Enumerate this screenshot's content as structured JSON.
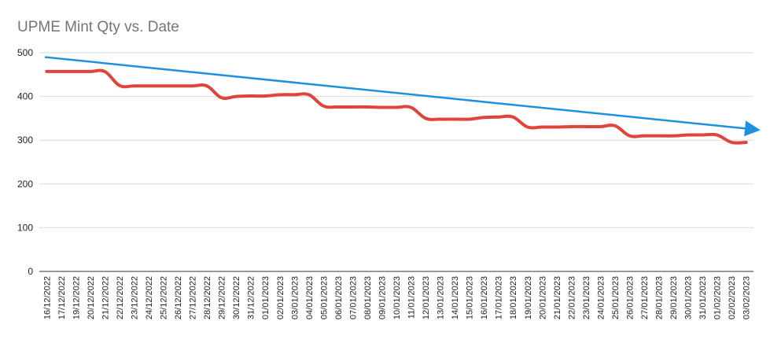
{
  "chart_data": {
    "type": "line",
    "title": "UPME Mint Qty vs. Date",
    "xlabel": "",
    "ylabel": "",
    "ylim": [
      0,
      500
    ],
    "yticks": [
      0,
      100,
      200,
      300,
      400,
      500
    ],
    "grid": true,
    "legend": "none",
    "categories": [
      "16/12/2022",
      "17/12/2022",
      "19/12/2022",
      "20/12/2022",
      "21/12/2022",
      "22/12/2022",
      "23/12/2022",
      "24/12/2022",
      "25/12/2022",
      "26/12/2022",
      "27/12/2022",
      "28/12/2022",
      "29/12/2022",
      "30/12/2022",
      "31/12/2022",
      "01/01/2023",
      "02/01/2023",
      "03/01/2023",
      "04/01/2023",
      "05/01/2023",
      "06/01/2023",
      "07/01/2023",
      "08/01/2023",
      "09/01/2023",
      "10/01/2023",
      "11/01/2023",
      "12/01/2023",
      "13/01/2023",
      "14/01/2023",
      "15/01/2023",
      "16/01/2023",
      "17/01/2023",
      "18/01/2023",
      "19/01/2023",
      "20/01/2023",
      "21/01/2023",
      "22/01/2023",
      "23/01/2023",
      "24/01/2023",
      "25/01/2023",
      "26/01/2023",
      "27/01/2023",
      "28/01/2023",
      "29/01/2023",
      "30/01/2023",
      "31/01/2023",
      "01/02/2023",
      "02/02/2023",
      "03/02/2023"
    ],
    "series": [
      {
        "color": "#e0443a",
        "values": [
          457,
          457,
          457,
          457,
          457,
          425,
          424,
          424,
          424,
          424,
          424,
          424,
          397,
          400,
          401,
          401,
          404,
          404,
          404,
          378,
          376,
          376,
          376,
          375,
          375,
          375,
          350,
          348,
          348,
          348,
          352,
          353,
          353,
          330,
          330,
          330,
          331,
          331,
          331,
          333,
          310,
          310,
          310,
          310,
          312,
          312,
          312,
          295,
          295
        ]
      }
    ],
    "trendline": {
      "color": "#1e90e0",
      "start_value": 490,
      "end_value": 325
    }
  }
}
